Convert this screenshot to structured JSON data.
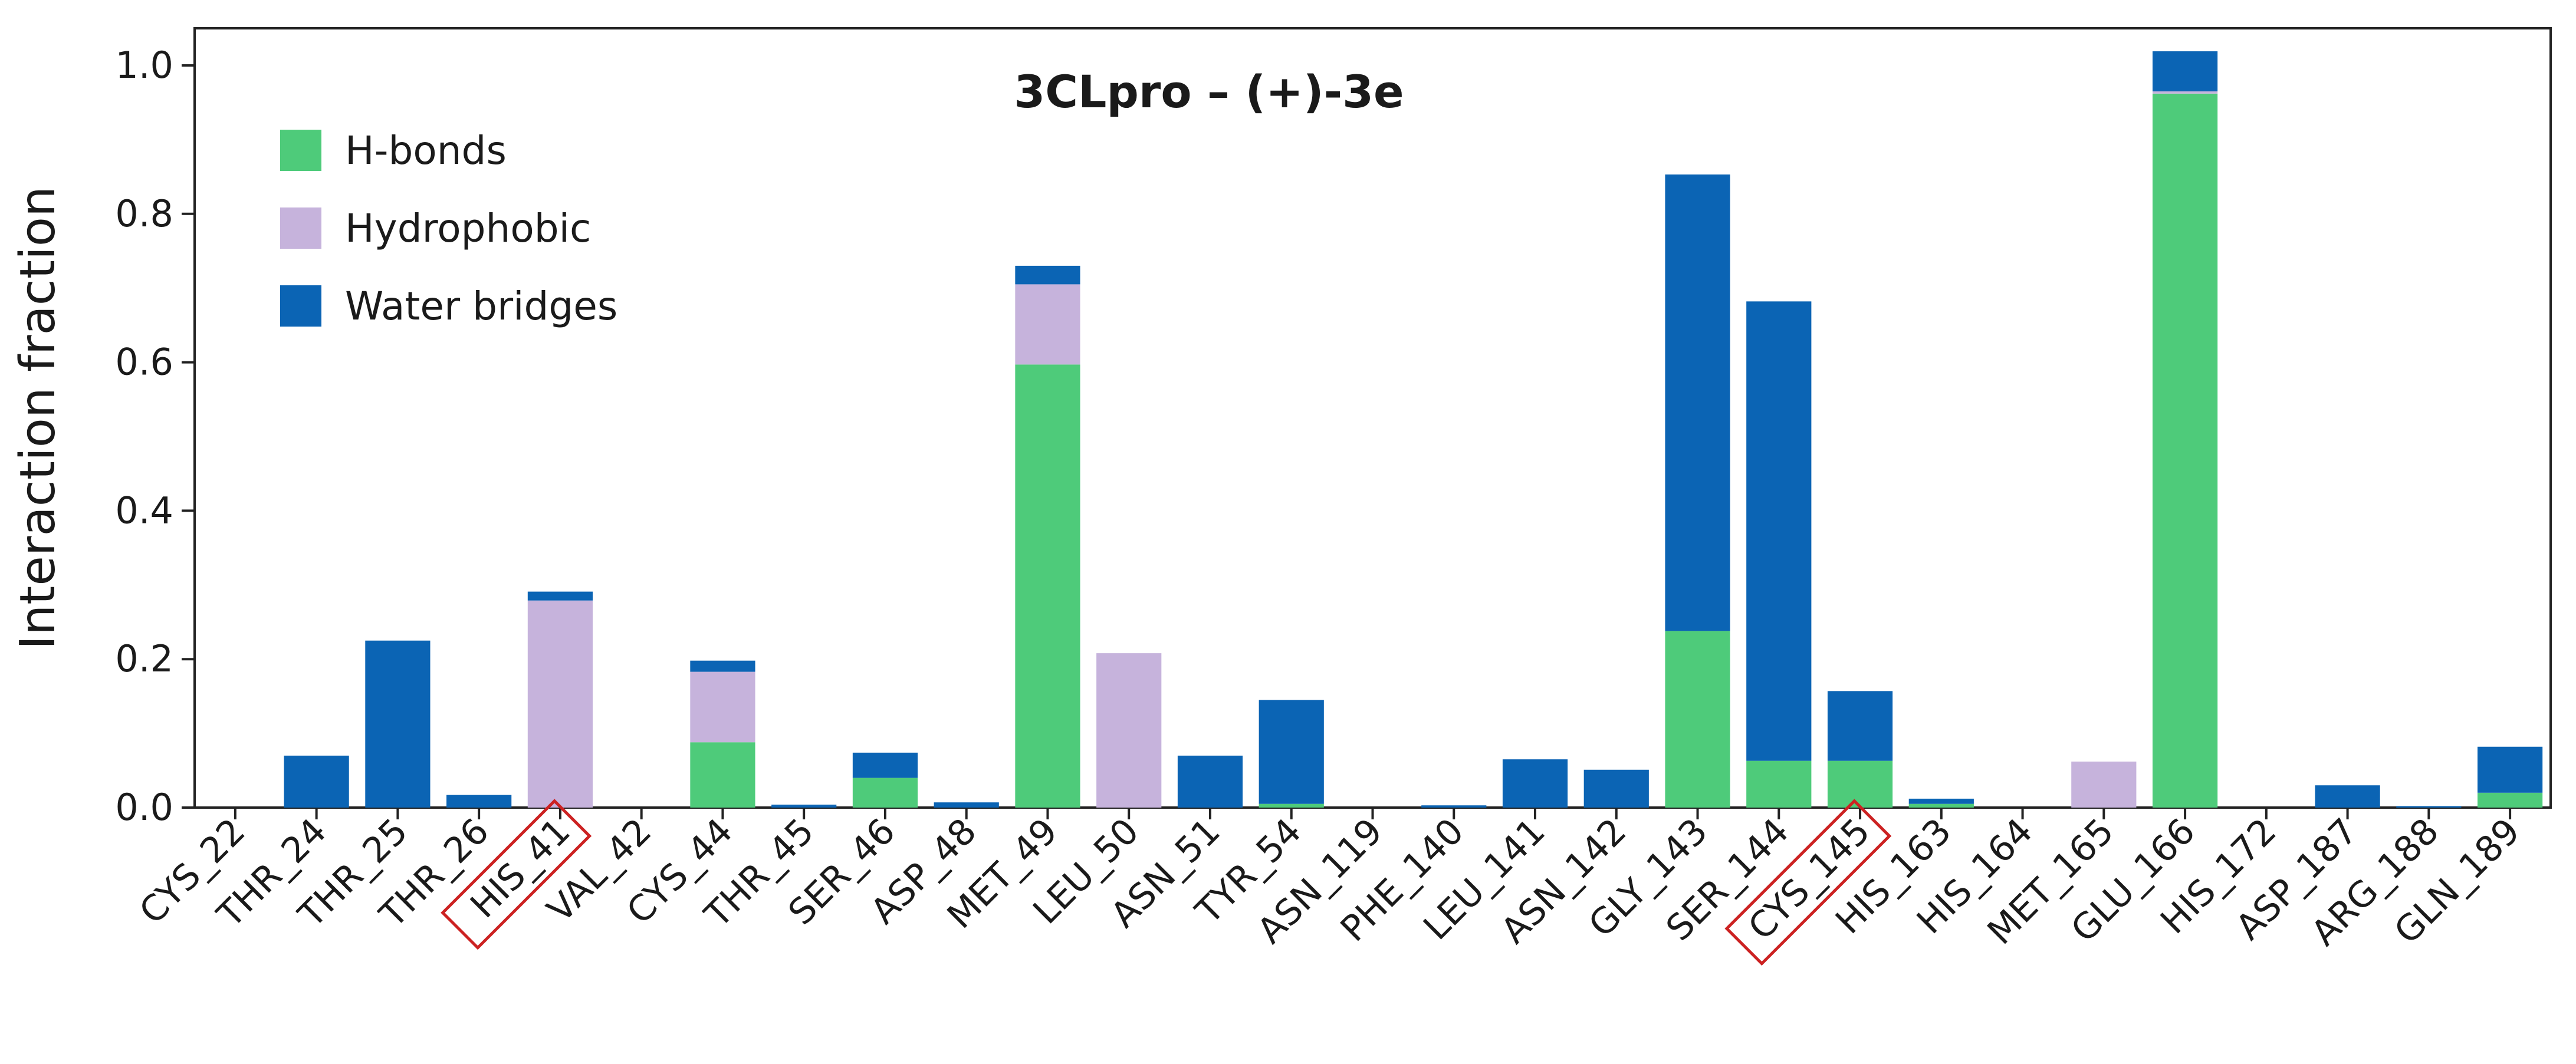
{
  "chart_data": {
    "type": "bar",
    "stacked": true,
    "title": "3CLpro – (+)-3e",
    "xlabel": "",
    "ylabel": "Interaction fraction",
    "ylim": [
      0,
      1.05
    ],
    "yticks": [
      "0.0",
      "0.2",
      "0.4",
      "0.6",
      "0.8",
      "1.0"
    ],
    "grid": false,
    "legend_position": "top-left",
    "categories": [
      "CYS_22",
      "THR_24",
      "THR_25",
      "THR_26",
      "HIS_41",
      "VAL_42",
      "CYS_44",
      "THR_45",
      "SER_46",
      "ASP_48",
      "MET_49",
      "LEU_50",
      "ASN_51",
      "TYR_54",
      "ASN_119",
      "PHE_140",
      "LEU_141",
      "ASN_142",
      "GLY_143",
      "SER_144",
      "CYS_145",
      "HIS_163",
      "HIS_164",
      "MET_165",
      "GLU_166",
      "HIS_172",
      "ASP_187",
      "ARG_188",
      "GLN_189"
    ],
    "highlighted_categories": [
      "HIS_41",
      "CYS_145"
    ],
    "highlight_color": "#cc2222",
    "series": [
      {
        "name": "H-bonds",
        "color": "#4ecb7a",
        "values": [
          0,
          0,
          0,
          0,
          0,
          0,
          0.088,
          0,
          0.04,
          0,
          0.597,
          0,
          0,
          0.005,
          0,
          0,
          0,
          0,
          0.238,
          0.063,
          0.063,
          0.005,
          0,
          0,
          0.962,
          0,
          0,
          0,
          0.02
        ]
      },
      {
        "name": "Hydrophobic",
        "color": "#c6b3dc",
        "values": [
          0,
          0,
          0,
          0,
          0.279,
          0,
          0.095,
          0,
          0,
          0,
          0.108,
          0.208,
          0,
          0,
          0,
          0,
          0,
          0,
          0,
          0,
          0,
          0,
          0,
          0.062,
          0.003,
          0,
          0,
          0,
          0
        ]
      },
      {
        "name": "Water bridges",
        "color": "#0b64b4",
        "values": [
          0,
          0.07,
          0.225,
          0.017,
          0.012,
          0,
          0.015,
          0.004,
          0.034,
          0.007,
          0.025,
          0,
          0.07,
          0.14,
          0,
          0.003,
          0.065,
          0.051,
          0.615,
          0.619,
          0.094,
          0.007,
          0,
          0,
          0.054,
          0,
          0.03,
          0.002,
          0.062
        ]
      }
    ]
  }
}
